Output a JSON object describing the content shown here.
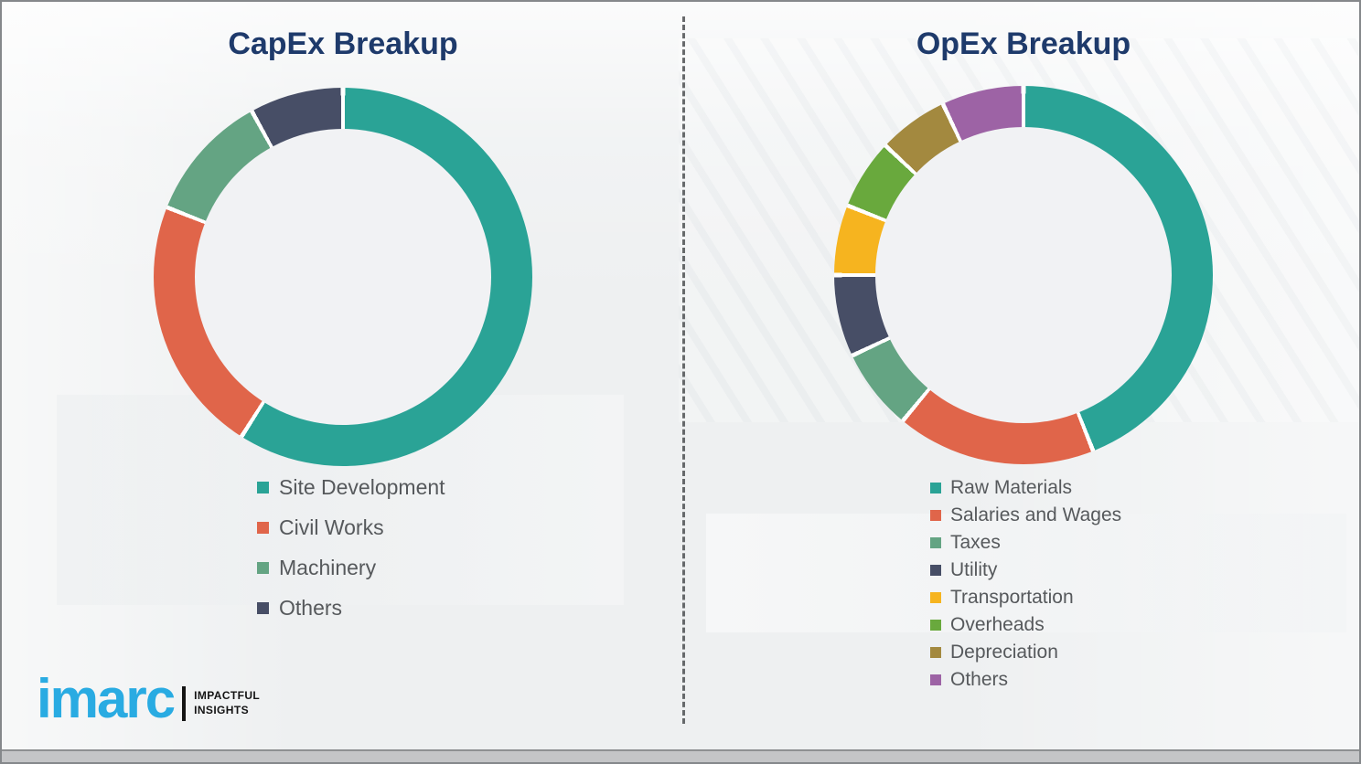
{
  "chart_data": [
    {
      "type": "pie",
      "subtype": "donut",
      "title": "CapEx Breakup",
      "labels": [
        "Site Development",
        "Civil Works",
        "Machinery",
        "Others"
      ],
      "values": [
        59,
        22,
        11,
        8
      ],
      "colors": [
        "#2aa396",
        "#e0654a",
        "#64a483",
        "#474e66"
      ],
      "values_note": "percent shares estimated from arc angles; no numeric labels shown in chart",
      "data_labels": false,
      "legend_position": "below-left",
      "start_angle_deg": 0,
      "direction": "clockwise"
    },
    {
      "type": "pie",
      "subtype": "donut",
      "title": "OpEx Breakup",
      "labels": [
        "Raw Materials",
        "Salaries and Wages",
        "Taxes",
        "Utility",
        "Transportation",
        "Overheads",
        "Depreciation",
        "Others"
      ],
      "values": [
        44,
        17,
        7,
        7,
        6,
        6,
        6,
        7
      ],
      "colors": [
        "#2aa396",
        "#e0654a",
        "#64a483",
        "#474e66",
        "#f6b41f",
        "#69a93d",
        "#a3893f",
        "#9d63a5"
      ],
      "values_note": "percent shares estimated from arc angles; no numeric labels shown in chart",
      "data_labels": false,
      "legend_position": "below-left",
      "start_angle_deg": 0,
      "direction": "clockwise"
    }
  ],
  "logo": {
    "brand": "imarc",
    "tagline_line1": "IMPACTFUL",
    "tagline_line2": "INSIGHTS",
    "brand_color": "#29abe2"
  },
  "style": {
    "title_color": "#1e3a6b",
    "legend_text_color": "#56595c",
    "background_color": "#eef0f1",
    "divider_color": "#4f5254",
    "segment_gap_color": "#ffffff"
  }
}
